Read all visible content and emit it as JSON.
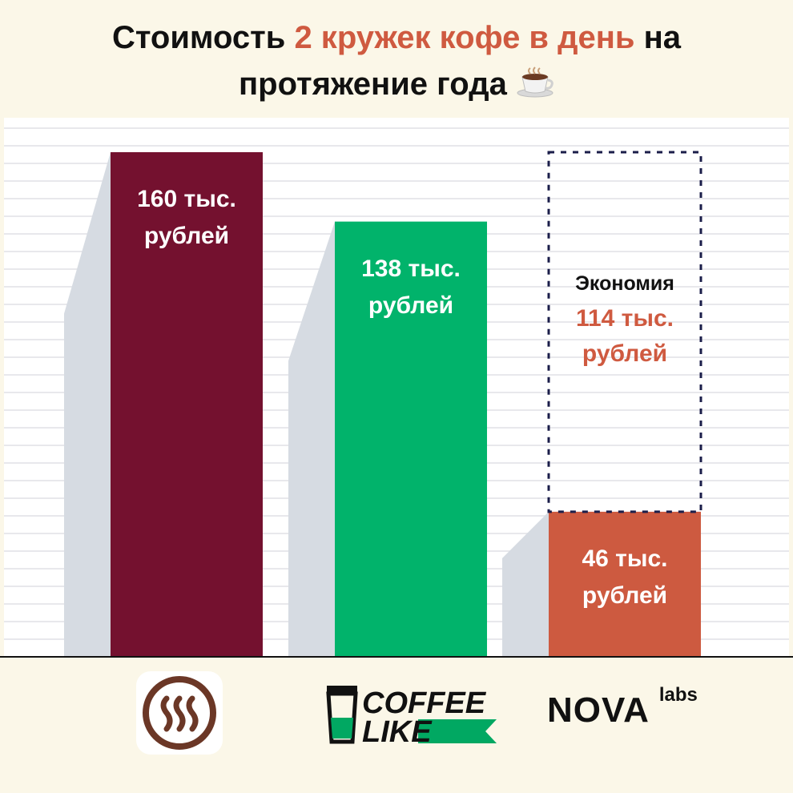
{
  "title": {
    "part1": "Стоимость ",
    "highlight": "2 кружек кофе в день",
    "part2": " на",
    "line2": "протяжение года"
  },
  "chart_data": {
    "type": "bar",
    "title": "Стоимость 2 кружек кофе в день на протяжение года",
    "ylim": [
      0,
      160
    ],
    "grid": true,
    "bars": [
      {
        "name": "app",
        "value": 160,
        "label_line1": "160 тыс.",
        "label_line2": "рублей",
        "color": "#74112f"
      },
      {
        "name": "coffee-like",
        "value": 138,
        "label_line1": "138 тыс.",
        "label_line2": "рублей",
        "color": "#01b36b"
      },
      {
        "name": "nova-labs",
        "value": 46,
        "label_line1": "46 тыс.",
        "label_line2": "рублей",
        "color": "#cd5a40"
      }
    ],
    "savings": {
      "value": 114,
      "word": "Экономия",
      "amount_line1": "114 тыс.",
      "amount_line2": "рублей",
      "border_color": "#1b1e4a"
    }
  },
  "logos": {
    "coffee_like_line1": "COFFEE",
    "coffee_like_line2": "LIKE",
    "nova": "NOVA",
    "labs": "labs"
  },
  "colors": {
    "background": "#fbf7e8",
    "accent": "#cf5a40"
  }
}
